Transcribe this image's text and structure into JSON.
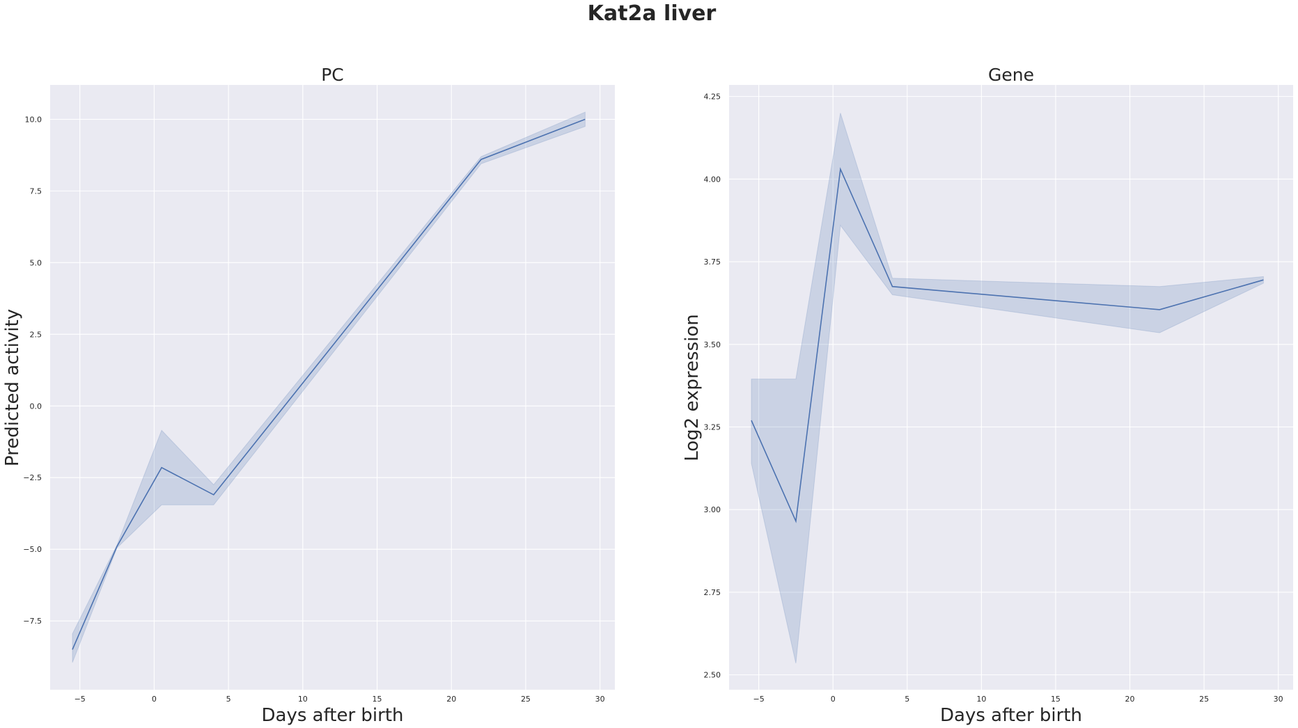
{
  "figure": {
    "title": "Kat2a liver",
    "colors": {
      "line": "#4c72b0",
      "band": "#4c72b0",
      "background": "#eaeaf2",
      "grid": "#ffffff"
    }
  },
  "chart_data": [
    {
      "type": "line",
      "title": "PC",
      "xlabel": "Days after birth",
      "ylabel": "Predicted activity",
      "xlim": [
        -7,
        31
      ],
      "ylim": [
        -9.9,
        11.2
      ],
      "xticks": [
        -5,
        0,
        5,
        10,
        15,
        20,
        25,
        30
      ],
      "xtick_labels": [
        "−5",
        "0",
        "5",
        "10",
        "15",
        "20",
        "25",
        "30"
      ],
      "yticks": [
        -7.5,
        -5.0,
        -2.5,
        0.0,
        2.5,
        5.0,
        7.5,
        10.0
      ],
      "ytick_labels": [
        "−7.5",
        "−5.0",
        "−2.5",
        "0.0",
        "2.5",
        "5.0",
        "7.5",
        "10.0"
      ],
      "grid": true,
      "series": [
        {
          "x": [
            -5.5,
            -2.5,
            0.5,
            4,
            22,
            29
          ],
          "y": [
            -8.5,
            -4.9,
            -2.15,
            -3.1,
            8.6,
            10.0
          ],
          "ci_low": [
            -8.95,
            -4.95,
            -3.45,
            -3.45,
            8.45,
            9.75
          ],
          "ci_high": [
            -7.95,
            -4.85,
            -0.85,
            -2.75,
            8.7,
            10.25
          ]
        }
      ]
    },
    {
      "type": "line",
      "title": "Gene",
      "xlabel": "Days after birth",
      "ylabel": "Log2 expression",
      "xlim": [
        -7,
        31
      ],
      "ylim": [
        2.455,
        4.285
      ],
      "xticks": [
        -5,
        0,
        5,
        10,
        15,
        20,
        25,
        30
      ],
      "xtick_labels": [
        "−5",
        "0",
        "5",
        "10",
        "15",
        "20",
        "25",
        "30"
      ],
      "yticks": [
        2.5,
        2.75,
        3.0,
        3.25,
        3.5,
        3.75,
        4.0,
        4.25
      ],
      "ytick_labels": [
        "2.50",
        "2.75",
        "3.00",
        "3.25",
        "3.50",
        "3.75",
        "4.00",
        "4.25"
      ],
      "grid": true,
      "series": [
        {
          "x": [
            -5.5,
            -2.5,
            0.5,
            4,
            22,
            29
          ],
          "y": [
            3.27,
            2.965,
            4.03,
            3.675,
            3.605,
            3.695
          ],
          "ci_low": [
            3.14,
            2.535,
            3.86,
            3.65,
            3.535,
            3.685
          ],
          "ci_high": [
            3.395,
            3.395,
            4.2,
            3.7,
            3.675,
            3.705
          ]
        }
      ]
    }
  ]
}
